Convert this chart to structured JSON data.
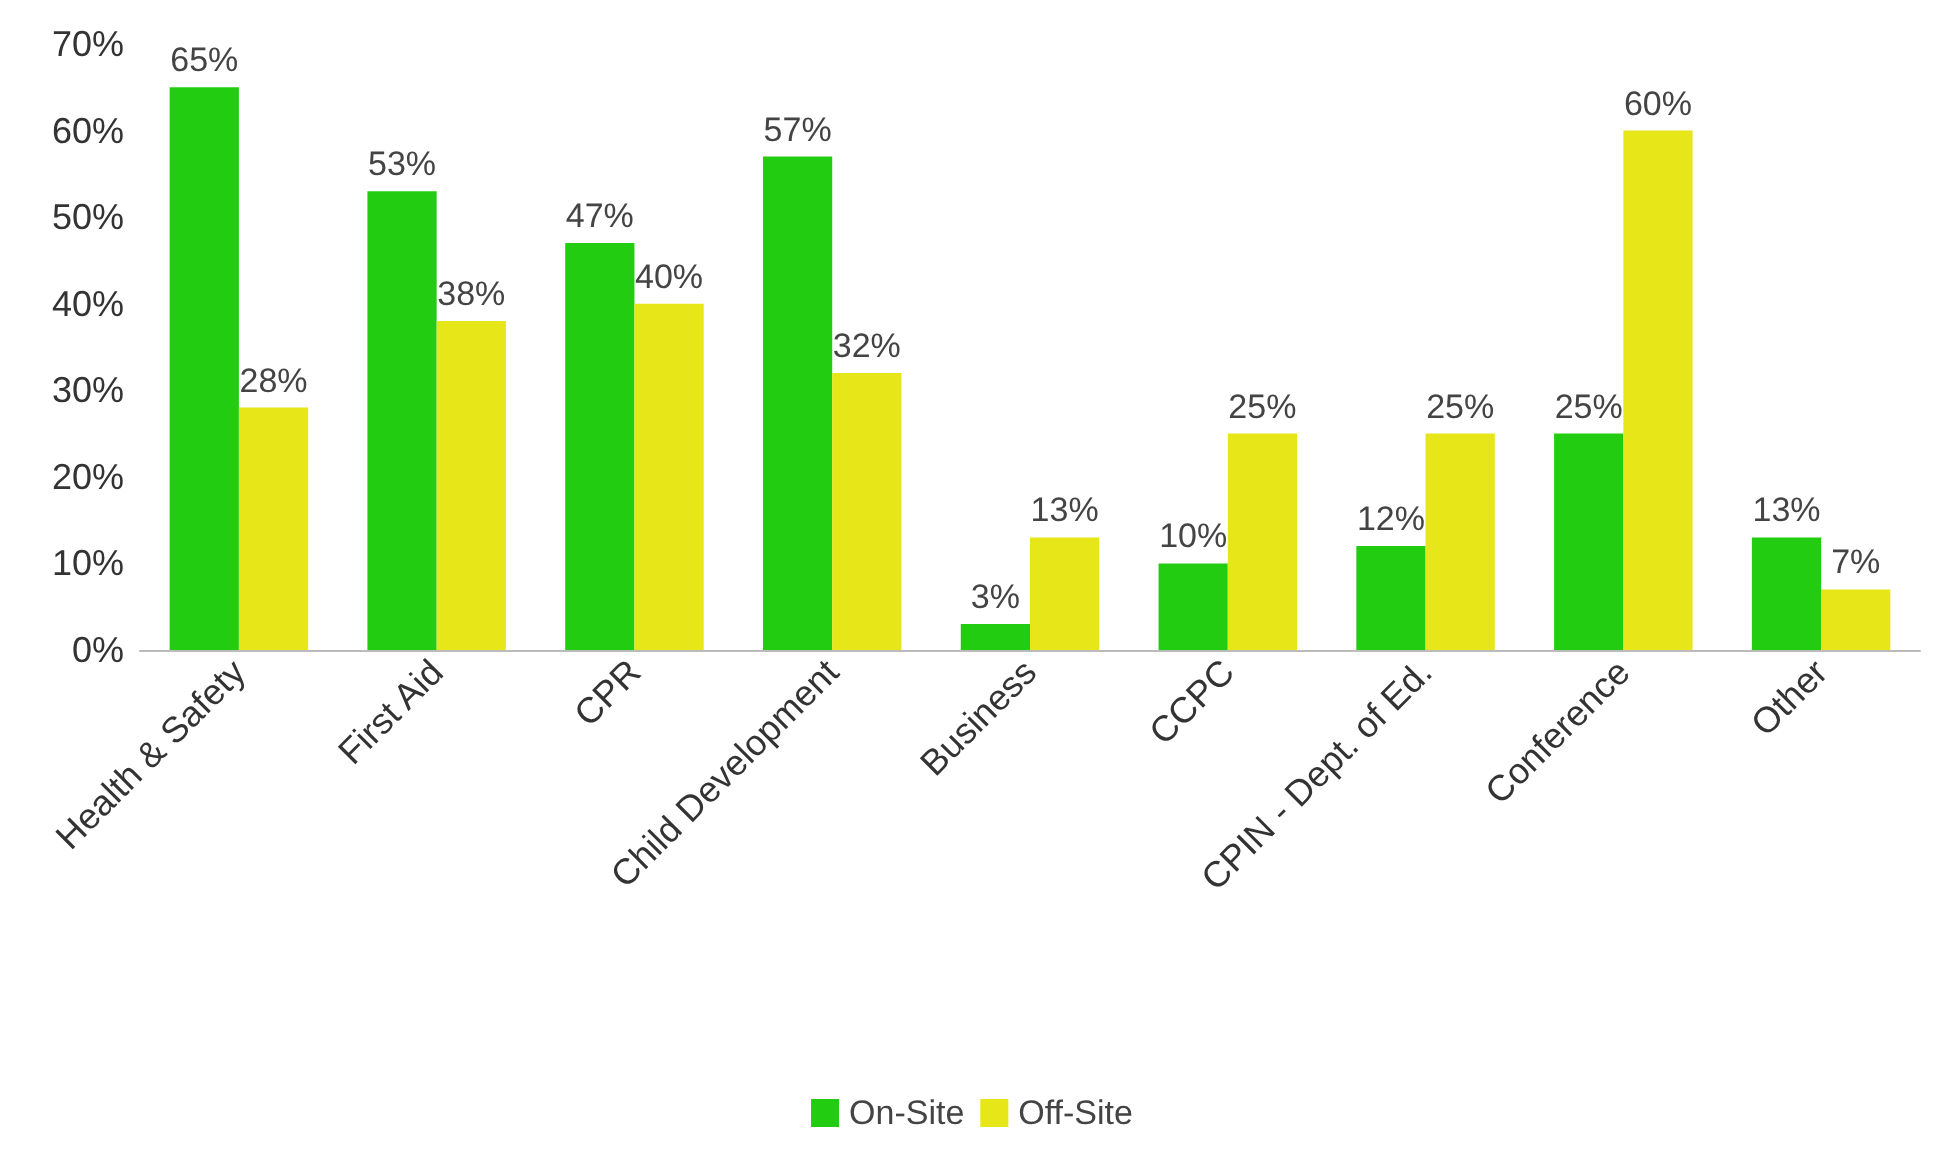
{
  "chart_data": {
    "type": "bar",
    "categories": [
      "Health & Safety",
      "First Aid",
      "CPR",
      "Child Development",
      "Business",
      "CCPC",
      "CPIN - Dept. of Ed.",
      "Conference",
      "Other"
    ],
    "series": [
      {
        "name": "On-Site",
        "color": "#22cc11",
        "values": [
          65,
          53,
          47,
          57,
          3,
          10,
          12,
          25,
          13
        ],
        "value_labels": [
          "65%",
          "53%",
          "47%",
          "57%",
          "3%",
          "10%",
          "12%",
          "25%",
          "13%"
        ]
      },
      {
        "name": "Off-Site",
        "color": "#e6e619",
        "values": [
          28,
          38,
          40,
          32,
          13,
          25,
          25,
          60,
          7
        ],
        "value_labels": [
          "28%",
          "38%",
          "40%",
          "32%",
          "13%",
          "25%",
          "25%",
          "60%",
          "7%"
        ]
      }
    ],
    "ylim": [
      0,
      70
    ],
    "yticks": [
      {
        "value": 0,
        "label": "0%"
      },
      {
        "value": 10,
        "label": "10%"
      },
      {
        "value": 20,
        "label": "20%"
      },
      {
        "value": 30,
        "label": "30%"
      },
      {
        "value": 40,
        "label": "40%"
      },
      {
        "value": 50,
        "label": "50%"
      },
      {
        "value": 60,
        "label": "60%"
      },
      {
        "value": 70,
        "label": "70%"
      }
    ],
    "grid": false,
    "legend": "bottom"
  }
}
